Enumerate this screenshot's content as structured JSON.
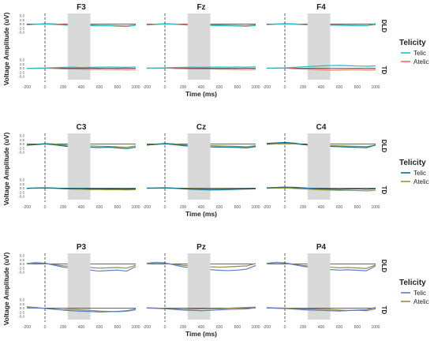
{
  "figure": {
    "y_label": "Voltage Amplitude (uV)",
    "x_label": "Time (ms)",
    "legend_title": "Telicity",
    "row_labels": [
      "DLD",
      "TD"
    ],
    "shade_window": [
      250,
      500
    ],
    "colors": {
      "panel1": {
        "Telic": "#1fbdbf",
        "Atelic": "#f0705e"
      },
      "panel2": {
        "Telic": "#0e6d8a",
        "Atelic": "#8a9a3c"
      },
      "panel3": {
        "Telic": "#5b7fc7",
        "Atelic": "#9a8a52"
      }
    }
  },
  "chart_data": [
    {
      "type": "line",
      "panel": 1,
      "legend": [
        "Telic",
        "Atelic"
      ],
      "xlim": [
        -200,
        1000
      ],
      "ylim": [
        -7.5,
        5
      ],
      "x_ticks": [
        -200,
        0,
        200,
        400,
        600,
        800,
        1000
      ],
      "y_ticks": [
        5.0,
        2.5,
        0.0,
        -2.5,
        -5.0
      ],
      "electrodes": [
        "F3",
        "Fz",
        "F4"
      ],
      "x": [
        -200,
        -100,
        0,
        100,
        200,
        300,
        400,
        500,
        600,
        700,
        800,
        900,
        1000
      ],
      "series": {
        "F3": {
          "DLD": {
            "Telic": [
              -0.5,
              -0.2,
              0.0,
              -0.3,
              -0.6,
              -0.9,
              -0.7,
              -1.0,
              -1.1,
              -1.0,
              -1.3,
              -1.5,
              -0.8
            ],
            "Atelic": [
              -0.4,
              -0.1,
              0.2,
              0.1,
              -0.3,
              -0.5,
              -0.4,
              -0.6,
              -0.8,
              -0.9,
              -1.0,
              -1.2,
              -0.6
            ]
          },
          "TD": {
            "Telic": [
              -0.1,
              0.0,
              0.1,
              0.3,
              0.5,
              0.6,
              0.4,
              0.5,
              0.6,
              0.7,
              0.6,
              0.5,
              0.7
            ],
            "Atelic": [
              -0.2,
              -0.1,
              0.0,
              -0.2,
              -0.4,
              -0.5,
              -0.6,
              -0.7,
              -0.6,
              -0.8,
              -0.7,
              -0.9,
              -0.8
            ]
          }
        },
        "Fz": {
          "DLD": {
            "Telic": [
              -0.6,
              -0.3,
              0.0,
              -0.2,
              -0.5,
              -0.8,
              -0.6,
              -0.9,
              -1.0,
              -1.1,
              -1.2,
              -1.4,
              -0.9
            ],
            "Atelic": [
              -0.3,
              -0.1,
              0.2,
              0.0,
              -0.2,
              -0.4,
              -0.3,
              -0.5,
              -0.6,
              -0.7,
              -0.9,
              -1.0,
              -0.5
            ]
          },
          "TD": {
            "Telic": [
              0.0,
              0.1,
              0.2,
              0.4,
              0.5,
              0.6,
              0.5,
              0.6,
              0.7,
              0.6,
              0.7,
              0.6,
              0.8
            ],
            "Atelic": [
              -0.1,
              0.0,
              0.1,
              -0.2,
              -0.3,
              -0.4,
              -0.5,
              -0.5,
              -0.6,
              -0.6,
              -0.7,
              -0.8,
              -0.7
            ]
          }
        },
        "F4": {
          "DLD": {
            "Telic": [
              -0.4,
              -0.2,
              0.1,
              -0.1,
              -0.4,
              -0.6,
              -0.5,
              -0.7,
              -0.8,
              -0.9,
              -1.0,
              -1.1,
              0.3
            ],
            "Atelic": [
              -0.3,
              0.0,
              0.2,
              0.1,
              -0.2,
              -0.4,
              -0.3,
              -0.4,
              -0.6,
              -0.7,
              -0.8,
              -0.9,
              -0.4
            ]
          },
          "TD": {
            "Telic": [
              0.0,
              0.1,
              0.2,
              0.5,
              0.8,
              1.1,
              1.4,
              1.6,
              1.7,
              1.5,
              1.3,
              1.2,
              1.4
            ],
            "Atelic": [
              -0.1,
              0.0,
              0.0,
              -0.3,
              -0.5,
              -0.7,
              -0.9,
              -1.1,
              -1.0,
              -0.9,
              -0.8,
              -1.0,
              -0.9
            ]
          }
        }
      }
    },
    {
      "type": "line",
      "panel": 2,
      "legend": [
        "Telic",
        "Atelic"
      ],
      "xlim": [
        -200,
        1000
      ],
      "ylim": [
        -7.5,
        5
      ],
      "x_ticks": [
        -200,
        0,
        200,
        400,
        600,
        800,
        1000
      ],
      "y_ticks": [
        5.0,
        2.5,
        0.0,
        -2.5,
        -5.0
      ],
      "electrodes": [
        "C3",
        "Cz",
        "C4"
      ],
      "x": [
        -200,
        -100,
        0,
        100,
        200,
        300,
        400,
        500,
        600,
        700,
        800,
        900,
        1000
      ],
      "series": {
        "C3": {
          "DLD": {
            "Telic": [
              -0.8,
              -0.4,
              0.0,
              -0.5,
              -1.2,
              -1.8,
              -1.6,
              -2.0,
              -2.2,
              -2.0,
              -2.4,
              -2.8,
              -2.0
            ],
            "Atelic": [
              -0.5,
              -0.2,
              0.2,
              0.0,
              -0.6,
              -1.0,
              -0.9,
              -1.2,
              -1.4,
              -1.5,
              -1.7,
              -2.0,
              -1.2
            ]
          },
          "TD": {
            "Telic": [
              -0.1,
              0.1,
              0.2,
              0.1,
              -0.2,
              -0.3,
              -0.2,
              -0.4,
              -0.5,
              -0.4,
              -0.5,
              -0.6,
              -0.4
            ],
            "Atelic": [
              -0.2,
              0.0,
              0.1,
              -0.1,
              -0.4,
              -0.6,
              -0.7,
              -0.9,
              -0.8,
              -1.0,
              -0.9,
              -1.1,
              -0.9
            ]
          }
        },
        "Cz": {
          "DLD": {
            "Telic": [
              -0.7,
              -0.3,
              0.1,
              -0.4,
              -1.0,
              -1.5,
              -1.4,
              -1.8,
              -1.9,
              -2.0,
              -2.1,
              -2.4,
              -1.6
            ],
            "Atelic": [
              -0.4,
              -0.1,
              0.3,
              0.1,
              -0.5,
              -0.9,
              -0.8,
              -1.0,
              -1.2,
              -1.3,
              -1.5,
              -1.7,
              -1.0
            ]
          },
          "TD": {
            "Telic": [
              0.0,
              0.1,
              0.2,
              0.0,
              -0.4,
              -0.7,
              -0.9,
              -1.1,
              -1.0,
              -0.9,
              -0.7,
              -0.5,
              -0.3
            ],
            "Atelic": [
              -0.1,
              0.0,
              0.1,
              -0.1,
              -0.3,
              -0.4,
              -0.5,
              -0.6,
              -0.5,
              -0.4,
              -0.5,
              -0.6,
              -0.4
            ]
          }
        },
        "C4": {
          "DLD": {
            "Telic": [
              0.3,
              0.6,
              0.9,
              0.5,
              -0.3,
              -1.0,
              -1.2,
              -1.5,
              -1.7,
              -1.9,
              -2.1,
              -2.3,
              -0.6
            ],
            "Atelic": [
              -0.3,
              0.0,
              0.3,
              0.1,
              -0.4,
              -0.7,
              -0.8,
              -1.0,
              -1.1,
              -1.3,
              -1.4,
              -1.6,
              -0.8
            ]
          },
          "TD": {
            "Telic": [
              0.2,
              0.4,
              0.6,
              0.5,
              0.2,
              -0.2,
              -0.4,
              -0.6,
              -0.7,
              -0.6,
              -0.5,
              -0.7,
              -0.4
            ],
            "Atelic": [
              -0.1,
              0.0,
              0.1,
              -0.2,
              -0.5,
              -0.8,
              -1.0,
              -1.2,
              -1.3,
              -1.4,
              -1.5,
              -1.7,
              -1.3
            ]
          }
        }
      }
    },
    {
      "type": "line",
      "panel": 3,
      "legend": [
        "Telic",
        "Atelic"
      ],
      "xlim": [
        -200,
        1000
      ],
      "ylim": [
        -7.5,
        5
      ],
      "x_ticks": [
        -200,
        0,
        200,
        400,
        600,
        800,
        1000
      ],
      "y_ticks": [
        5.0,
        2.5,
        0.0,
        -2.5,
        -5.0
      ],
      "electrodes": [
        "P3",
        "Pz",
        "P4"
      ],
      "x": [
        -200,
        -100,
        0,
        100,
        200,
        300,
        400,
        500,
        600,
        700,
        800,
        900,
        1000
      ],
      "series": {
        "P3": {
          "DLD": {
            "Telic": [
              0.2,
              0.8,
              0.4,
              -0.8,
              -2.0,
              -2.6,
              -3.2,
              -3.8,
              -4.4,
              -4.0,
              -3.8,
              -4.4,
              -1.6
            ],
            "Atelic": [
              0.0,
              0.6,
              0.3,
              -0.4,
              -1.2,
              -1.6,
              -1.8,
              -2.2,
              -2.6,
              -2.4,
              -2.2,
              -2.6,
              -0.8
            ]
          },
          "TD": {
            "Telic": [
              0.2,
              0.0,
              -0.2,
              -0.6,
              -1.2,
              -1.6,
              -1.9,
              -2.1,
              -2.4,
              -2.2,
              -2.0,
              -1.6,
              -0.6
            ],
            "Atelic": [
              0.8,
              0.4,
              -0.2,
              -0.8,
              -1.0,
              -0.8,
              -1.1,
              -1.4,
              -1.8,
              -2.0,
              -2.2,
              -1.9,
              -1.0
            ]
          }
        },
        "Pz": {
          "DLD": {
            "Telic": [
              0.4,
              0.9,
              0.6,
              -0.6,
              -1.8,
              -2.4,
              -3.0,
              -3.5,
              -3.9,
              -4.1,
              -3.8,
              -3.2,
              -1.0
            ],
            "Atelic": [
              0.2,
              0.7,
              0.4,
              -0.2,
              -0.9,
              -1.2,
              -1.4,
              -1.8,
              -2.0,
              -1.8,
              -1.5,
              -1.2,
              0.2
            ]
          },
          "TD": {
            "Telic": [
              0.0,
              -0.2,
              -0.4,
              -0.8,
              -1.2,
              -1.4,
              -1.6,
              -1.3,
              -1.1,
              -0.8,
              -0.6,
              -0.5,
              0.2
            ],
            "Atelic": [
              0.2,
              0.0,
              -0.2,
              -0.5,
              -0.8,
              -0.7,
              -0.5,
              -0.3,
              -0.4,
              -0.1,
              0.2,
              0.4,
              0.6
            ]
          }
        },
        "P4": {
          "DLD": {
            "Telic": [
              0.2,
              0.8,
              0.5,
              -0.5,
              -1.5,
              -2.2,
              -2.8,
              -3.4,
              -3.8,
              -3.6,
              -3.9,
              -4.2,
              -1.2
            ],
            "Atelic": [
              0.4,
              0.9,
              0.6,
              -0.2,
              -1.0,
              -1.4,
              -1.6,
              -2.0,
              -2.4,
              -2.2,
              -2.5,
              -2.8,
              -0.6
            ]
          },
          "TD": {
            "Telic": [
              0.1,
              -0.1,
              -0.3,
              -0.6,
              -1.0,
              -1.2,
              -1.4,
              -1.6,
              -1.8,
              -1.5,
              -1.2,
              -1.0,
              0.4
            ],
            "Atelic": [
              0.3,
              0.1,
              0.0,
              -0.3,
              -0.6,
              -0.5,
              -0.7,
              -0.9,
              -1.2,
              -1.4,
              -1.3,
              -1.6,
              -0.4
            ]
          }
        }
      }
    }
  ]
}
